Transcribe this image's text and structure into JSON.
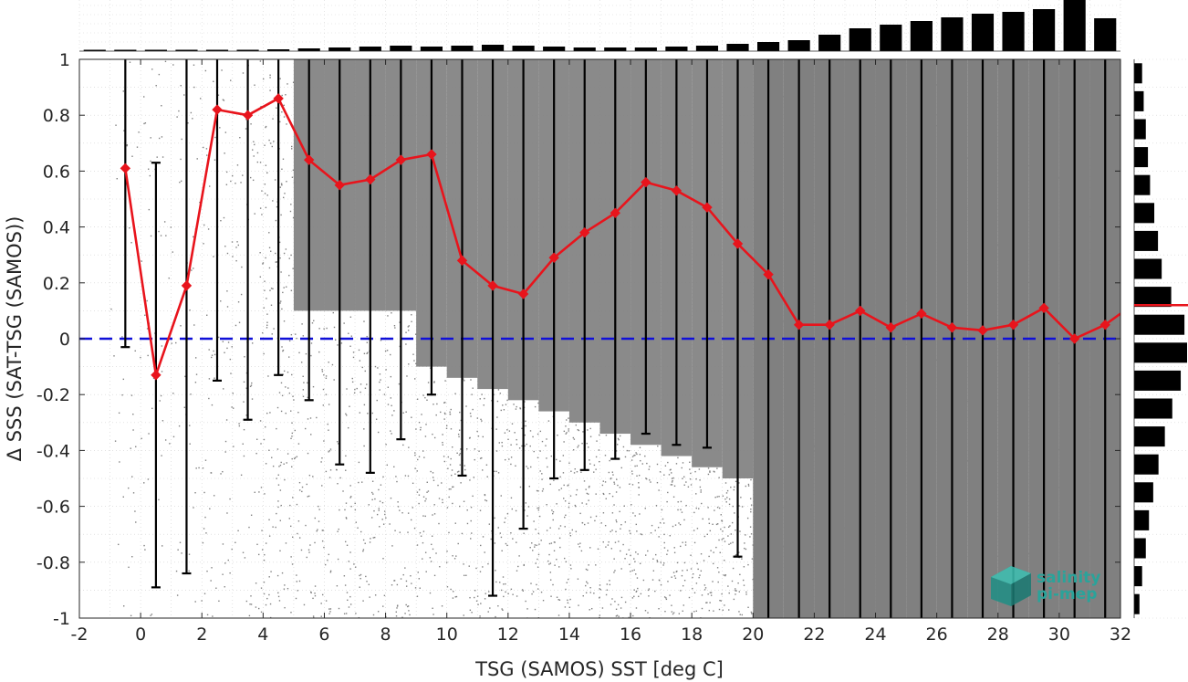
{
  "chart_data": {
    "type": "scatter",
    "xlabel": "TSG (SAMOS) SST [deg C]",
    "ylabel": "Δ SSS (SAT-TSG (SAMOS))",
    "xlim": [
      -2,
      32
    ],
    "ylim": [
      -1,
      1
    ],
    "x_ticks": [
      "-2",
      "0",
      "2",
      "4",
      "6",
      "8",
      "10",
      "12",
      "14",
      "16",
      "18",
      "20",
      "22",
      "24",
      "26",
      "28",
      "30",
      "32"
    ],
    "y_ticks": [
      "1",
      "0.8",
      "0.6",
      "0.4",
      "0.2",
      "0",
      "-0.2",
      "-0.4",
      "-0.6",
      "-0.8",
      "-1"
    ],
    "grid": true,
    "reference_line_y": 0,
    "bins_x": [
      -0.5,
      0.5,
      1.5,
      2.5,
      3.5,
      4.5,
      5.5,
      6.5,
      7.5,
      8.5,
      9.5,
      10.5,
      11.5,
      12.5,
      13.5,
      14.5,
      15.5,
      16.5,
      17.5,
      18.5,
      19.5,
      20.5,
      21.5,
      22.5,
      23.5,
      24.5,
      25.5,
      26.5,
      27.5,
      28.5,
      29.5,
      30.5,
      31.5
    ],
    "mean_delta_sss": [
      0.61,
      -0.13,
      0.19,
      0.82,
      0.8,
      0.86,
      0.64,
      0.55,
      0.57,
      0.64,
      0.66,
      0.28,
      0.19,
      0.16,
      0.29,
      0.38,
      0.45,
      0.56,
      0.53,
      0.47,
      0.34,
      0.23,
      0.05,
      0.05,
      0.1,
      0.04,
      0.09,
      0.04,
      0.03,
      0.05,
      0.11,
      0.0,
      0.05
    ],
    "error_low": [
      -0.03,
      -0.89,
      -0.84,
      -0.15,
      -0.29,
      -0.13,
      -0.22,
      -0.45,
      -0.48,
      -0.36,
      -0.2,
      -0.49,
      -0.92,
      -0.68,
      -0.5,
      -0.47,
      -0.43,
      -0.34,
      -0.38,
      -0.39,
      -0.78,
      -1,
      -1,
      -1,
      -1,
      -1,
      -1,
      -1,
      -1,
      -1,
      -1,
      -1,
      -1
    ],
    "error_high": [
      1,
      0.63,
      1,
      1,
      1,
      1,
      1,
      1,
      1,
      1,
      1,
      1,
      1,
      1,
      1,
      1,
      1,
      1,
      1,
      1,
      1,
      1,
      1,
      1,
      1,
      1,
      1,
      1,
      1,
      1,
      1,
      1,
      1
    ],
    "x_histogram_counts": [
      0.5,
      1,
      1,
      1,
      1,
      1,
      2,
      3,
      4,
      5,
      6,
      5,
      6,
      7,
      6,
      5,
      4,
      4,
      4,
      5,
      6,
      8,
      10,
      12,
      18,
      25,
      29,
      33,
      37,
      41,
      43,
      46,
      56,
      36,
      13
    ],
    "x_histogram_bins_x": [
      -1.5,
      -0.5,
      0.5,
      1.5,
      2.5,
      3.5,
      4.5,
      5.5,
      6.5,
      7.5,
      8.5,
      9.5,
      10.5,
      11.5,
      12.5,
      13.5,
      14.5,
      15.5,
      16.5,
      17.5,
      18.5,
      19.5,
      20.5,
      21.5,
      22.5,
      23.5,
      24.5,
      25.5,
      26.5,
      27.5,
      28.5,
      29.5,
      30.5,
      31.5,
      32.5
    ],
    "y_histogram_bins_y": [
      0.95,
      0.85,
      0.75,
      0.65,
      0.55,
      0.45,
      0.35,
      0.25,
      0.15,
      0.05,
      -0.05,
      -0.15,
      -0.25,
      -0.35,
      -0.45,
      -0.55,
      -0.65,
      -0.75,
      -0.85,
      -0.95
    ],
    "y_histogram_counts": [
      0.15,
      0.18,
      0.22,
      0.26,
      0.3,
      0.38,
      0.45,
      0.52,
      0.7,
      0.95,
      1.0,
      0.88,
      0.72,
      0.58,
      0.46,
      0.36,
      0.28,
      0.22,
      0.15,
      0.1
    ],
    "y_histogram_median": 0.12,
    "colors": {
      "scatter": "#808080",
      "mean_line": "#e8141c",
      "error_bars": "#000000",
      "zero_line": "#1010d8",
      "histogram": "#000000",
      "median_marker": "#e8141c"
    }
  },
  "logo": {
    "line1": "salinity",
    "line2": "pi-mep",
    "icon": "cube-logo-icon"
  }
}
